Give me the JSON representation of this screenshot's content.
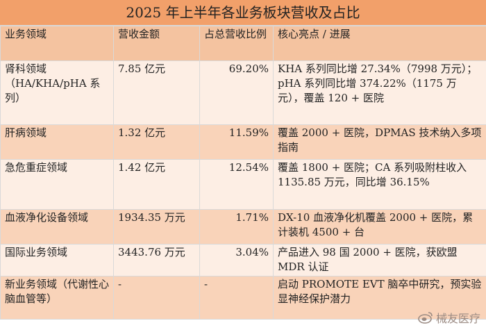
{
  "title": "2025 年上半年各业务板块营收及占比",
  "headers": [
    "业务领域",
    "营收金额",
    "占总营收比例",
    "核心亮点 / 进展"
  ],
  "rows": [
    {
      "area": "肾科领域（HA/KHA/pHA 系列）",
      "revenue": "7.85 亿元",
      "share": "69.20%",
      "highlight": "KHA 系列同比增 27.34%（7998 万元）；pHA 系列同比增 374.22%（1175 万元），覆盖 120 + 医院"
    },
    {
      "area": "肝病领域",
      "revenue": "1.32 亿元",
      "share": "11.59%",
      "highlight": "覆盖 2000 + 医院，DPMAS 技术纳入多项指南"
    },
    {
      "area": "急危重症领域",
      "revenue": "1.42 亿元",
      "share": "12.54%",
      "highlight": "覆盖 1800 + 医院；CA 系列吸附柱收入 1135.85 万元，同比增 36.15%"
    },
    {
      "area": "血液净化设备领域",
      "revenue": "1934.35 万元",
      "share": "1.71%",
      "highlight": "DX-10 血液净化机覆盖 2000 + 医院，累计装机 4500 + 台"
    },
    {
      "area": "国际业务领域",
      "revenue": "3443.76 万元",
      "share": "3.04%",
      "highlight": "产品进入 98 国 2000 + 医院，获欧盟 MDR 认证"
    },
    {
      "area": "新业务领域（代谢性心脑血管等）",
      "revenue": "-",
      "share": "-",
      "highlight": "启动 PROMOTE EVT 脑卒中研究，预实验显神经保护潜力"
    }
  ],
  "watermark": "械友医疗"
}
